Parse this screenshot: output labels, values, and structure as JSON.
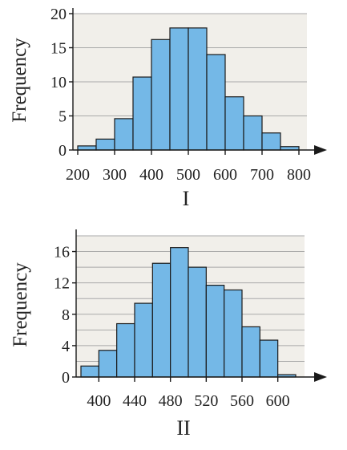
{
  "chart_data": [
    {
      "type": "bar",
      "caption": "I",
      "ylabel": "Frequency",
      "bin_edges": [
        200,
        250,
        300,
        350,
        400,
        450,
        500,
        550,
        600,
        650,
        700,
        750,
        800
      ],
      "values": [
        0.6,
        1.6,
        4.6,
        10.7,
        16.2,
        17.9,
        17.9,
        14.0,
        7.8,
        5.0,
        2.5,
        0.5
      ],
      "xlim": [
        200,
        800
      ],
      "ylim": [
        0,
        20
      ],
      "x_ticks": [
        "200",
        "300",
        "400",
        "500",
        "600",
        "700",
        "800"
      ],
      "y_ticks": [
        "0",
        "5",
        "10",
        "15",
        "20"
      ],
      "grid": true
    },
    {
      "type": "bar",
      "caption": "II",
      "ylabel": "Frequency",
      "bin_edges": [
        380,
        400,
        420,
        440,
        460,
        480,
        500,
        520,
        540,
        560,
        580,
        600,
        620
      ],
      "values": [
        1.4,
        3.4,
        6.8,
        9.4,
        14.5,
        16.5,
        14.0,
        11.7,
        11.1,
        6.4,
        4.7,
        0.3
      ],
      "xlim": [
        380,
        620
      ],
      "ylim": [
        0,
        18
      ],
      "x_ticks": [
        "400",
        "440",
        "480",
        "520",
        "560",
        "600"
      ],
      "y_ticks": [
        "0",
        "4",
        "8",
        "12",
        "16"
      ],
      "grid": true
    }
  ]
}
